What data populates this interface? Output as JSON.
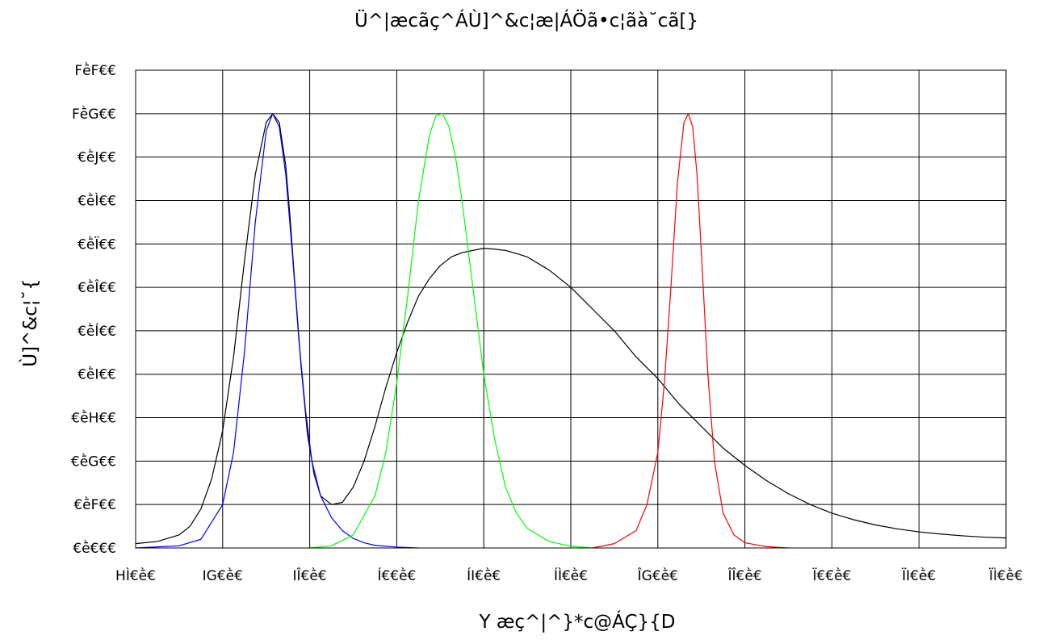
{
  "chart_data": {
    "type": "line",
    "title": "Ü^|æcãç^ÁÙ]^&c¦æ|ÁÖã•c¦ãà˘cã[}",
    "xlabel": "Y æç^|^}*c@ÁÇ}{D",
    "ylabel": "Ù]^&c¦˘{",
    "x_ticks": [
      380,
      420,
      460,
      500,
      540,
      580,
      620,
      660,
      700,
      740,
      780
    ],
    "x_tick_labels": [
      "HÌ€ḕ€",
      "IG€ḕ€",
      "IÎ€ḕ€",
      "Í€€ḕ€",
      "ÍI€ḕ€",
      "ÍÌ€ḕ€",
      "ÎG€ḕ€",
      "ÎÎ€ḕ€",
      "Ï€€ḕ€",
      "ÏI€ḕ€",
      "ÏÌ€ḕ€"
    ],
    "y_ticks": [
      0.0,
      0.1,
      0.2,
      0.3,
      0.4,
      0.5,
      0.6,
      0.7,
      0.8,
      0.9,
      1.0,
      1.1
    ],
    "y_tick_labels": [
      "€ḕ€€€",
      "€ḕF€€",
      "€ḕG€€",
      "€ḕH€€",
      "€ḕI€€",
      "€ḕÍ€€",
      "€ḕÎ€€",
      "€ḕÏ€€",
      "€ḕÌ€€",
      "€ḕJ€€",
      "FḕG€€",
      "FḕF€€"
    ],
    "xlim": [
      380,
      780
    ],
    "ylim": [
      0,
      1.1
    ],
    "grid": true,
    "series": [
      {
        "color": "#000000",
        "x": [
          380,
          390,
          400,
          405,
          410,
          415,
          420,
          425,
          430,
          435,
          440,
          443,
          446,
          449,
          451,
          453,
          456,
          459,
          462,
          465,
          470,
          475,
          480,
          485,
          490,
          495,
          500,
          505,
          510,
          515,
          520,
          525,
          530,
          535,
          540,
          545,
          550,
          555,
          560,
          570,
          580,
          590,
          600,
          610,
          620,
          630,
          640,
          650,
          660,
          670,
          680,
          690,
          700,
          710,
          720,
          730,
          740,
          750,
          760,
          770,
          780
        ],
        "y": [
          0.01,
          0.015,
          0.03,
          0.05,
          0.09,
          0.16,
          0.27,
          0.44,
          0.66,
          0.86,
          0.98,
          1.0,
          0.98,
          0.88,
          0.76,
          0.62,
          0.42,
          0.26,
          0.17,
          0.12,
          0.1,
          0.105,
          0.14,
          0.2,
          0.28,
          0.37,
          0.45,
          0.52,
          0.58,
          0.62,
          0.65,
          0.67,
          0.68,
          0.685,
          0.69,
          0.688,
          0.685,
          0.678,
          0.67,
          0.64,
          0.6,
          0.55,
          0.5,
          0.44,
          0.39,
          0.33,
          0.28,
          0.23,
          0.19,
          0.155,
          0.125,
          0.1,
          0.08,
          0.065,
          0.053,
          0.044,
          0.037,
          0.032,
          0.028,
          0.025,
          0.023
        ]
      },
      {
        "color": "#0000ff",
        "x": [
          380,
          400,
          410,
          420,
          425,
          430,
          435,
          440,
          443,
          446,
          449,
          452,
          455,
          458,
          461,
          465,
          470,
          475,
          480,
          485,
          490,
          500,
          510
        ],
        "y": [
          0.0,
          0.005,
          0.02,
          0.1,
          0.22,
          0.45,
          0.75,
          0.96,
          1.0,
          0.97,
          0.86,
          0.68,
          0.48,
          0.32,
          0.2,
          0.12,
          0.07,
          0.04,
          0.022,
          0.012,
          0.006,
          0.002,
          0.0
        ]
      },
      {
        "color": "#00ff00",
        "x": [
          460,
          470,
          480,
          490,
          495,
          500,
          505,
          510,
          515,
          518,
          521,
          524,
          527,
          530,
          535,
          540,
          545,
          550,
          555,
          560,
          570,
          580,
          590
        ],
        "y": [
          0.0,
          0.005,
          0.03,
          0.12,
          0.22,
          0.38,
          0.58,
          0.8,
          0.95,
          0.995,
          1.0,
          0.97,
          0.9,
          0.8,
          0.6,
          0.4,
          0.25,
          0.14,
          0.08,
          0.045,
          0.015,
          0.004,
          0.0
        ]
      },
      {
        "color": "#ff0000",
        "x": [
          590,
          600,
          610,
          615,
          620,
          623,
          626,
          629,
          632,
          634,
          636,
          638,
          640,
          643,
          646,
          650,
          655,
          660,
          670,
          680
        ],
        "y": [
          0.0,
          0.01,
          0.04,
          0.1,
          0.22,
          0.38,
          0.6,
          0.84,
          0.98,
          1.0,
          0.97,
          0.86,
          0.68,
          0.4,
          0.2,
          0.08,
          0.03,
          0.012,
          0.003,
          0.0
        ]
      }
    ]
  }
}
